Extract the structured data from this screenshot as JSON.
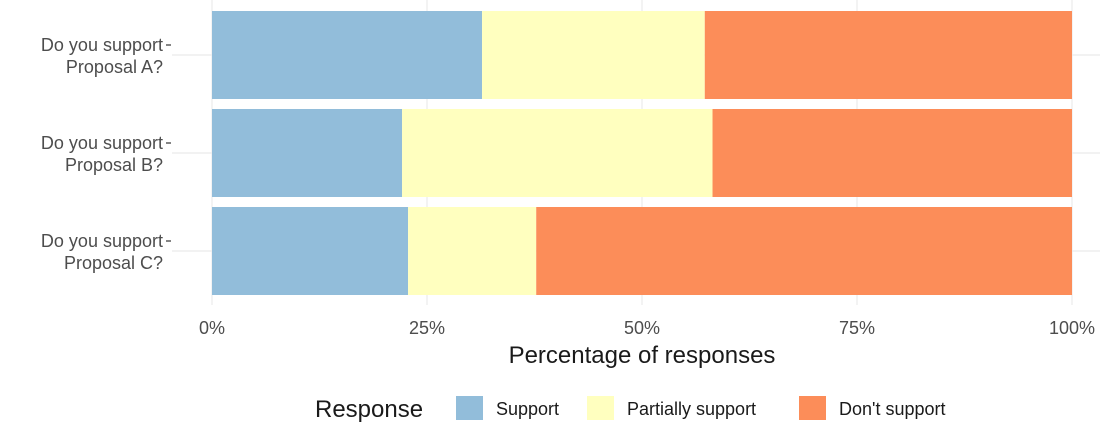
{
  "chart_data": {
    "type": "bar",
    "orientation": "horizontal",
    "stacked": true,
    "categories": [
      [
        "Do you support",
        "Proposal A?"
      ],
      [
        "Do you support",
        "Proposal B?"
      ],
      [
        "Do you support",
        "Proposal C?"
      ]
    ],
    "series": [
      {
        "name": "Support",
        "color": "#92BDDA",
        "values": [
          31.4,
          22.1,
          22.8
        ]
      },
      {
        "name": "Partially support",
        "color": "#FFFFBF",
        "values": [
          25.9,
          36.1,
          14.9
        ]
      },
      {
        "name": "Don't support",
        "color": "#FC8D59",
        "values": [
          42.7,
          41.8,
          62.3
        ]
      }
    ],
    "xlabel": "Percentage of responses",
    "ylabel": "",
    "xlim": [
      0,
      100
    ],
    "xticks": [
      0,
      25,
      50,
      75,
      100
    ],
    "xtick_labels": [
      "0%",
      "25%",
      "50%",
      "75%",
      "100%"
    ],
    "grid": true,
    "legend": {
      "title": "Response",
      "placement": "bottom",
      "entries": [
        "Support",
        "Partially support",
        "Don't support"
      ]
    }
  }
}
